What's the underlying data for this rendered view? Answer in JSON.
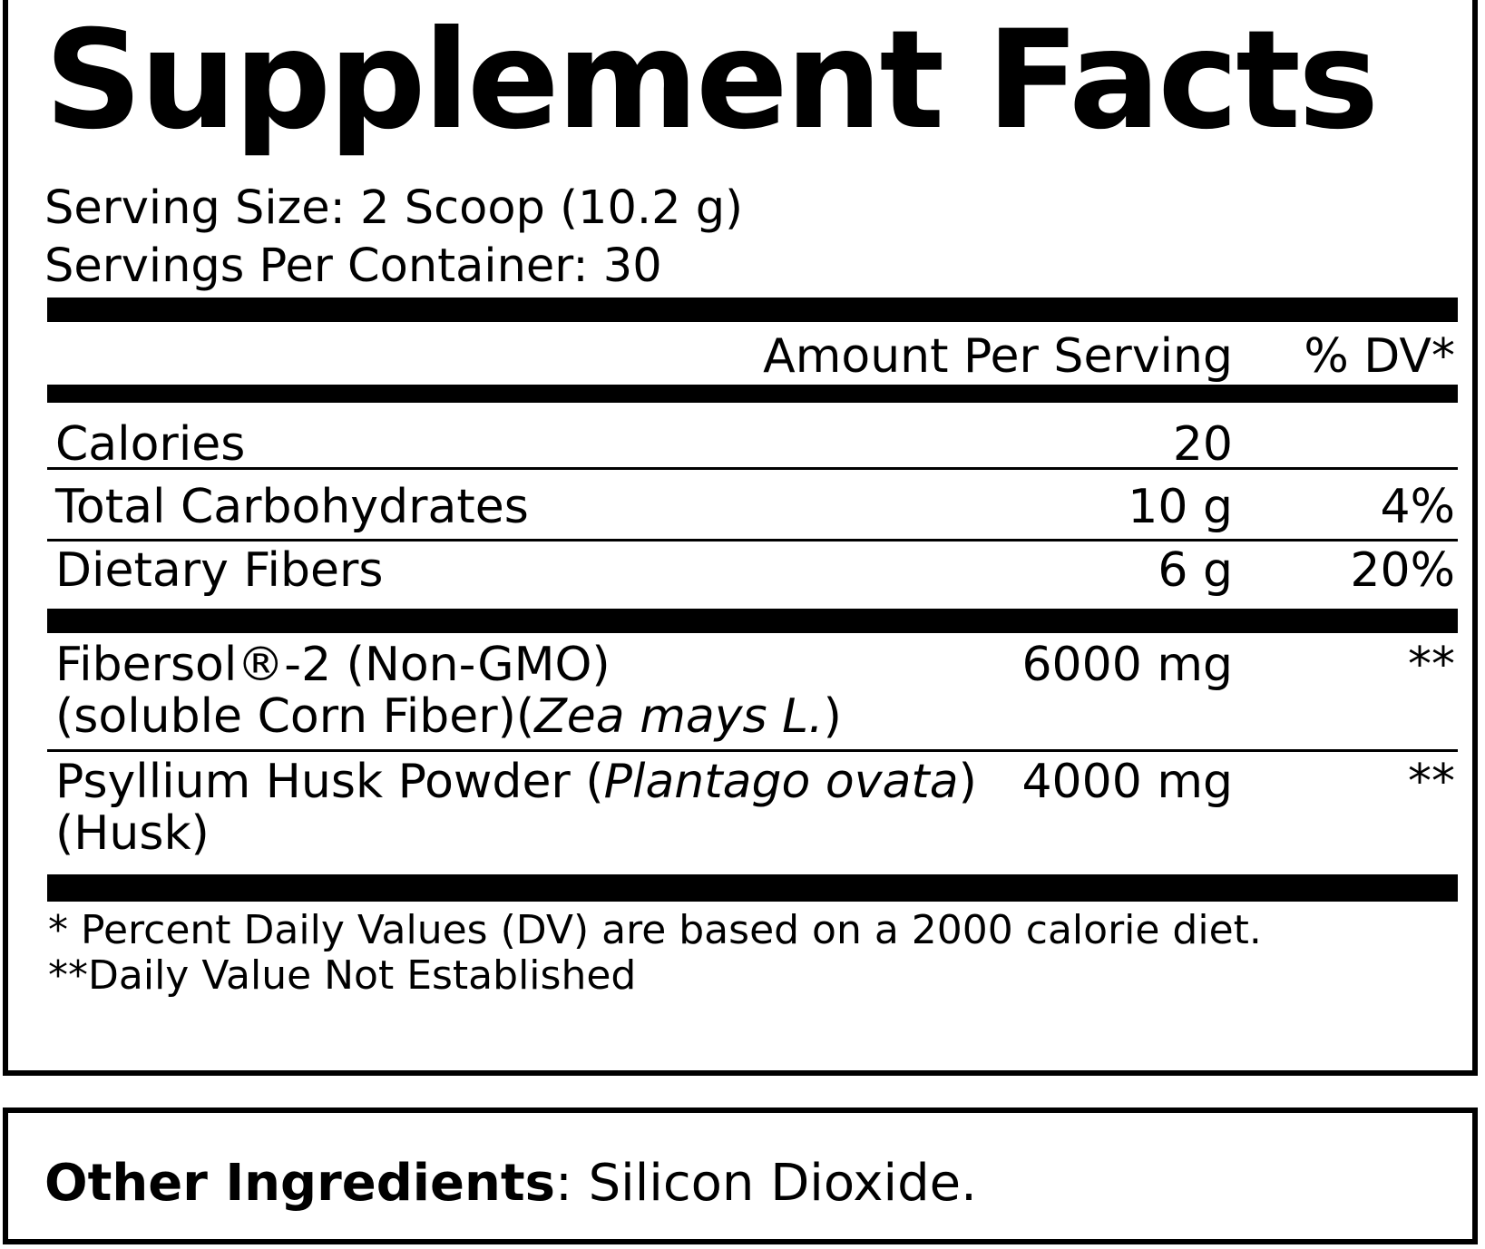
{
  "title": "Supplement Facts",
  "serving_size": "Serving Size: 2 Scoop (10.2 g)",
  "servings_per_container": "Servings Per Container: 30",
  "header": {
    "amount_per_serving": "Amount Per  Serving",
    "dv": "% DV*"
  },
  "rows": [
    {
      "name": "Calories",
      "amount": "20",
      "dv": ""
    },
    {
      "name": "Total Carbohydrates",
      "amount": "10 g",
      "dv": "4%"
    },
    {
      "name": "Dietary Fibers",
      "amount": "6 g",
      "dv": "20%"
    }
  ],
  "ingredients": [
    {
      "line1": "Fibersol®-2 (Non-GMO)",
      "line2_prefix": "(soluble Corn Fiber)(",
      "line2_italic": "Zea mays L.",
      "line2_suffix": ")",
      "amount": "6000 mg",
      "dv": "**"
    },
    {
      "line1_prefix": "Psyllium Husk Powder (",
      "line1_italic": "Plantago ovata",
      "line1_suffix": ")",
      "line2": "(Husk)",
      "amount": "4000 mg",
      "dv": "**"
    }
  ],
  "footnotes": {
    "note1": "* Percent Daily Values (DV) are based on a 2000 calorie diet.",
    "note2": "**Daily Value Not Established"
  },
  "other_ingredients": {
    "label": "Other Ingredients",
    "value": ": Silicon Dioxide."
  }
}
